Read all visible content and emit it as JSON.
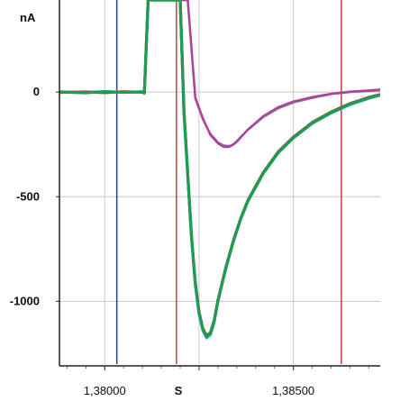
{
  "chart_data": {
    "type": "line",
    "ylabel": "nA",
    "xlabel": "S",
    "xlim": [
      1.3788,
      1.3873
    ],
    "ylim": [
      -1300,
      440
    ],
    "grid": true,
    "x_ticks": [
      1.38,
      1.3825,
      1.385
    ],
    "x_tick_labels": [
      "1,38000",
      "",
      "1,38500"
    ],
    "y_ticks": [
      0,
      -500,
      -1000
    ],
    "y_tick_labels": [
      "0",
      "-500",
      "-1000"
    ],
    "markers": [
      {
        "name": "blue-cursor",
        "x": 1.38032,
        "color": "#2a3aa0"
      },
      {
        "name": "red-cursor-1",
        "x": 1.3819,
        "color": "#d23a3a"
      },
      {
        "name": "red-cursor-2",
        "x": 1.38627,
        "color": "#d23a3a"
      }
    ],
    "series": [
      {
        "color": "#7a7f9e",
        "x": [
          1.3788,
          1.3795,
          1.38,
          1.3805,
          1.381,
          1.38105,
          1.38115,
          1.3814,
          1.3822,
          1.3824,
          1.3826,
          1.3828,
          1.383,
          1.38315,
          1.3833,
          1.3834,
          1.3835,
          1.3836,
          1.3838,
          1.3842,
          1.3846,
          1.385,
          1.3855,
          1.386,
          1.3865,
          1.387,
          1.3873
        ],
        "values": [
          0,
          -2,
          1,
          -3,
          0,
          -4,
          440,
          440,
          440,
          -30,
          -130,
          -200,
          -240,
          -255,
          -258,
          -250,
          -235,
          -215,
          -180,
          -120,
          -78,
          -50,
          -28,
          -10,
          0,
          5,
          8
        ]
      },
      {
        "color": "#b0409a",
        "x": [
          1.3788,
          1.3795,
          1.38,
          1.3805,
          1.381,
          1.38105,
          1.38115,
          1.3814,
          1.3822,
          1.3824,
          1.3826,
          1.3828,
          1.383,
          1.38315,
          1.3833,
          1.3834,
          1.3835,
          1.3836,
          1.3838,
          1.3842,
          1.3846,
          1.385,
          1.3855,
          1.386,
          1.3865,
          1.387,
          1.3873
        ],
        "values": [
          -3,
          2,
          -2,
          2,
          -2,
          -6,
          440,
          440,
          440,
          -25,
          -125,
          -205,
          -245,
          -262,
          -262,
          -252,
          -238,
          -218,
          -178,
          -115,
          -72,
          -45,
          -24,
          -8,
          2,
          8,
          12
        ]
      },
      {
        "color": "#36b9e0",
        "x": [
          1.3788,
          1.3795,
          1.38,
          1.3805,
          1.381,
          1.38105,
          1.38115,
          1.3814,
          1.3818,
          1.38185,
          1.3819,
          1.382,
          1.3821,
          1.3822,
          1.3823,
          1.3824,
          1.3825,
          1.3826,
          1.3827,
          1.3828,
          1.3829,
          1.383,
          1.3832,
          1.3834,
          1.3836,
          1.3838,
          1.3842,
          1.3846,
          1.385,
          1.3855,
          1.386,
          1.3865,
          1.387,
          1.3873
        ],
        "values": [
          2,
          -4,
          3,
          -2,
          2,
          -2,
          440,
          440,
          440,
          440,
          440,
          440,
          -100,
          -400,
          -700,
          -920,
          -1060,
          -1140,
          -1175,
          -1160,
          -1100,
          -1000,
          -850,
          -720,
          -610,
          -520,
          -390,
          -290,
          -220,
          -150,
          -100,
          -60,
          -30,
          -15
        ]
      },
      {
        "color": "#b03a33",
        "x": [
          1.3788,
          1.3795,
          1.38,
          1.3805,
          1.381,
          1.38105,
          1.38115,
          1.3814,
          1.3818,
          1.38185,
          1.3819,
          1.382,
          1.3821,
          1.3822,
          1.3823,
          1.3824,
          1.3825,
          1.3826,
          1.3827,
          1.3828,
          1.3829,
          1.383,
          1.3832,
          1.3834,
          1.3836,
          1.3838,
          1.3842,
          1.3846,
          1.385,
          1.3855,
          1.386,
          1.3865,
          1.387,
          1.3873
        ],
        "values": [
          -2,
          1,
          -3,
          2,
          -1,
          -5,
          440,
          440,
          440,
          440,
          440,
          440,
          -90,
          -390,
          -690,
          -910,
          -1050,
          -1130,
          -1165,
          -1150,
          -1090,
          -995,
          -845,
          -715,
          -605,
          -515,
          -385,
          -285,
          -215,
          -145,
          -95,
          -55,
          -25,
          -12
        ]
      },
      {
        "color": "#1e9c50",
        "x": [
          1.3788,
          1.3795,
          1.38,
          1.3805,
          1.381,
          1.38105,
          1.38115,
          1.3814,
          1.3818,
          1.38185,
          1.3819,
          1.382,
          1.3821,
          1.3822,
          1.3823,
          1.3824,
          1.3825,
          1.3826,
          1.3827,
          1.3828,
          1.3829,
          1.383,
          1.3832,
          1.3834,
          1.3836,
          1.3838,
          1.3842,
          1.3846,
          1.385,
          1.3855,
          1.386,
          1.3865,
          1.387,
          1.3873
        ],
        "values": [
          0,
          -3,
          2,
          -1,
          1,
          -3,
          440,
          440,
          440,
          440,
          440,
          440,
          -95,
          -395,
          -695,
          -915,
          -1055,
          -1135,
          -1170,
          -1155,
          -1095,
          -998,
          -848,
          -718,
          -608,
          -518,
          -388,
          -288,
          -218,
          -148,
          -98,
          -58,
          -28,
          -14
        ]
      }
    ]
  }
}
